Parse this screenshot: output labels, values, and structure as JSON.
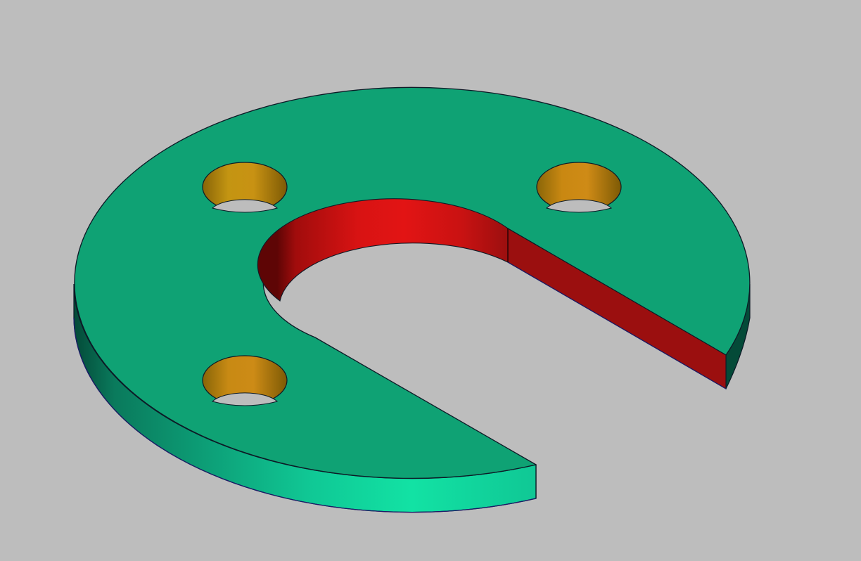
{
  "viewport": {
    "background_color": "#bdbdbd"
  },
  "model": {
    "part_type": "slotted-washer",
    "hole_count": 3,
    "colors": {
      "top_face": "#0fa274",
      "outer_side_light": "#12e2a4",
      "outer_side_dark": "#044a38",
      "slot_face": "#e11414",
      "slot_face_dark": "#6f0606",
      "slot_wall": "#9b0f0f",
      "hole_wall_light": "#c79612",
      "hole_wall_dark": "#845f06",
      "edge": "#0d1a26"
    }
  }
}
